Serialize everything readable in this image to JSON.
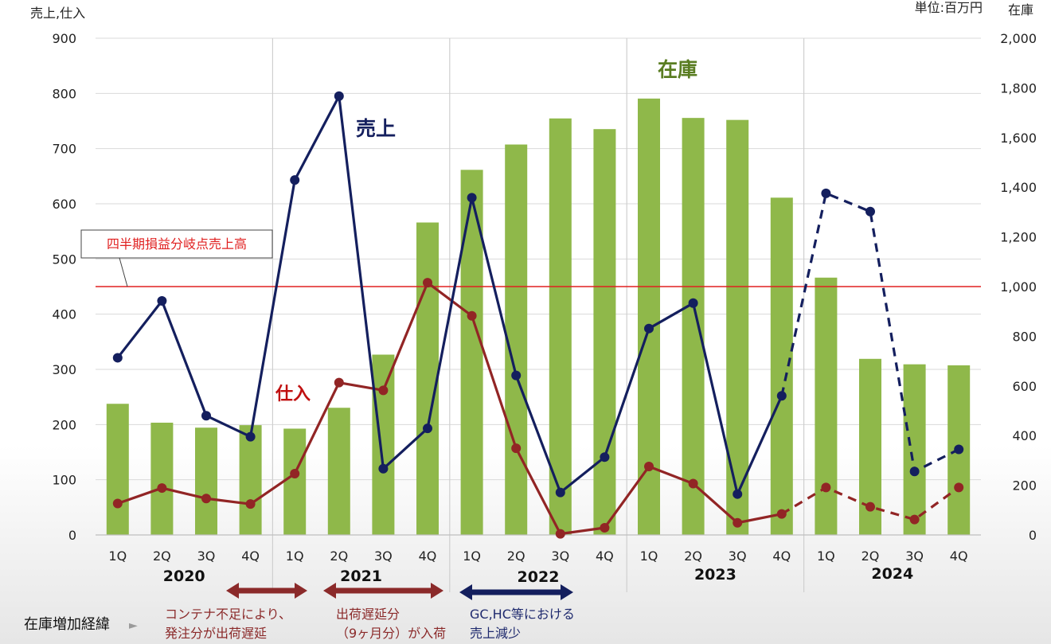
{
  "chart_data": {
    "type": "bar+line",
    "left_axis_label": "売上,仕入",
    "right_axis_label": "在庫",
    "unit_note": "単位:百万円",
    "left_ylim": [
      0,
      900
    ],
    "left_ticks": [
      "0",
      "100",
      "200",
      "300",
      "400",
      "500",
      "600",
      "700",
      "800",
      "900"
    ],
    "right_ylim": [
      0,
      2000
    ],
    "right_ticks": [
      "0",
      "200",
      "400",
      "600",
      "800",
      "1,000",
      "1,200",
      "1,400",
      "1,600",
      "1,800",
      "2,000"
    ],
    "quarters": [
      "1Q",
      "2Q",
      "3Q",
      "4Q",
      "1Q",
      "2Q",
      "3Q",
      "4Q",
      "1Q",
      "2Q",
      "3Q",
      "4Q",
      "1Q",
      "2Q",
      "3Q",
      "4Q",
      "1Q",
      "2Q",
      "3Q",
      "4Q"
    ],
    "years": [
      "2020",
      "2021",
      "2022",
      "2023",
      "2024"
    ],
    "series": [
      {
        "name": "在庫",
        "kind": "bar",
        "axis": "right",
        "color": "#8fb84a",
        "values": [
          528,
          452,
          432,
          442,
          428,
          512,
          726,
          1258,
          1470,
          1572,
          1677,
          1634,
          1757,
          1679,
          1671,
          1358,
          1036,
          709,
          687,
          683
        ]
      },
      {
        "name": "売上",
        "kind": "line",
        "axis": "left",
        "color": "#141f5e",
        "dashed_from_index": 16,
        "values": [
          321,
          424,
          216,
          178,
          643,
          795,
          120,
          193,
          611,
          289,
          77,
          141,
          374,
          420,
          74,
          252,
          619,
          586,
          115,
          155
        ]
      },
      {
        "name": "仕入",
        "kind": "line",
        "axis": "left",
        "color": "#922525",
        "dashed_from_index": 16,
        "values": [
          57,
          85,
          66,
          56,
          111,
          276,
          262,
          457,
          397,
          157,
          2,
          13,
          124,
          93,
          22,
          38,
          86,
          51,
          28,
          86
        ]
      }
    ],
    "breakeven": {
      "label": "四半期損益分岐点売上高",
      "value": 450,
      "color": "#e02020"
    },
    "annotations": {
      "inventory_heading": "在庫増加経緯",
      "notes": [
        {
          "text_lines": [
            "コンテナ不足により、",
            "発注分が出荷遅延"
          ],
          "color": "#8b2a2a",
          "arrow_color": "#8b2a2a"
        },
        {
          "text_lines": [
            "出荷遅延分",
            "（9ヶ月分）が入荷"
          ],
          "color": "#8b2a2a",
          "arrow_color": "#8b2a2a"
        },
        {
          "text_lines": [
            "GC,HC等における",
            "売上減少"
          ],
          "color": "#1f2a6e",
          "arrow_color": "#141f5e"
        }
      ]
    }
  }
}
